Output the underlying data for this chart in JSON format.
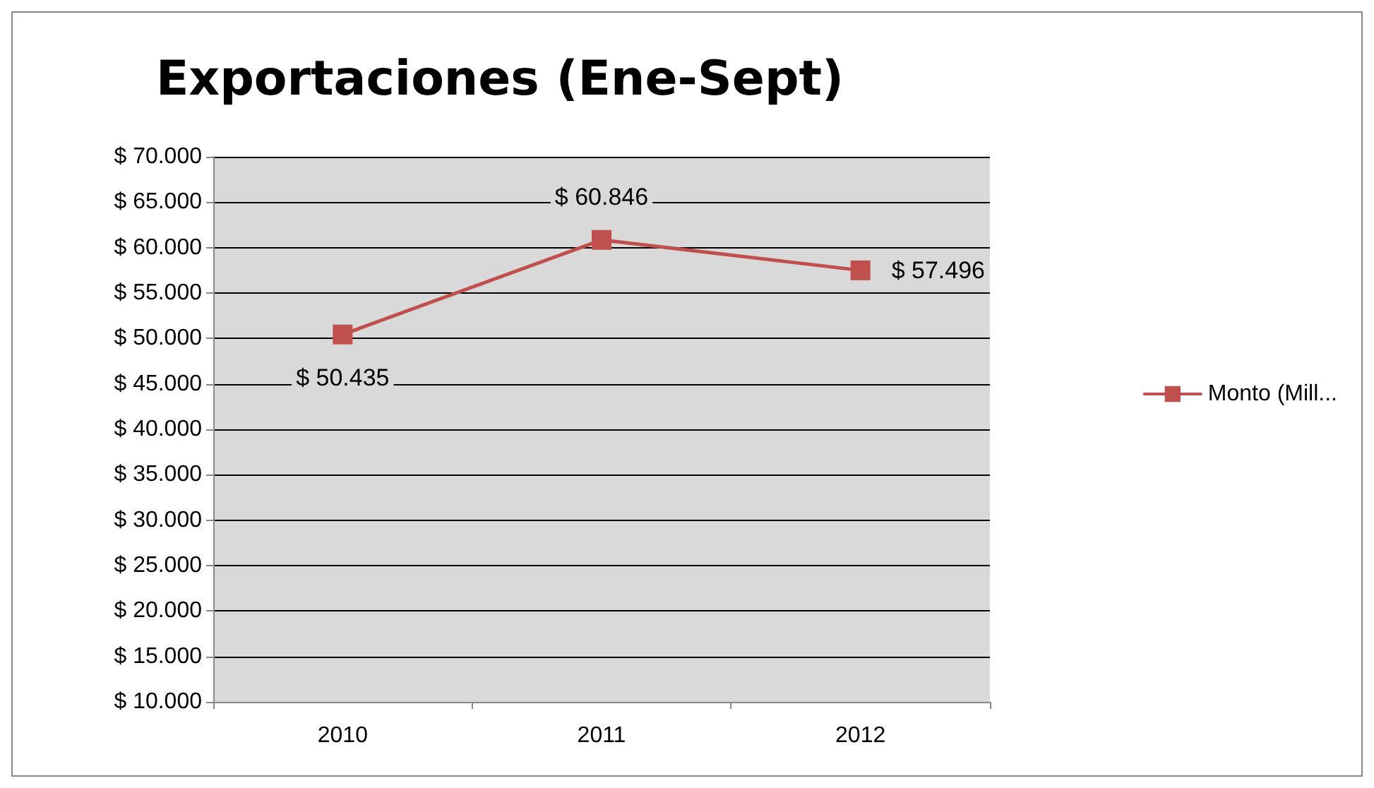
{
  "chart_data": {
    "type": "line",
    "title": "Exportaciones (Ene-Sept)",
    "categories": [
      "2010",
      "2011",
      "2012"
    ],
    "series": [
      {
        "name": "Monto (Mill...",
        "color": "#c0504d",
        "values": [
          50435,
          60846,
          57496
        ],
        "value_labels": [
          "$ 50.435",
          "$ 60.846",
          "$ 57.496"
        ]
      }
    ],
    "ylim": [
      10000,
      70000
    ],
    "yticks": [
      {
        "value": 10000,
        "label": "$ 10.000"
      },
      {
        "value": 15000,
        "label": "$ 15.000"
      },
      {
        "value": 20000,
        "label": "$ 20.000"
      },
      {
        "value": 25000,
        "label": "$ 25.000"
      },
      {
        "value": 30000,
        "label": "$ 30.000"
      },
      {
        "value": 35000,
        "label": "$ 35.000"
      },
      {
        "value": 40000,
        "label": "$ 40.000"
      },
      {
        "value": 45000,
        "label": "$ 45.000"
      },
      {
        "value": 50000,
        "label": "$ 50.000"
      },
      {
        "value": 55000,
        "label": "$ 55.000"
      },
      {
        "value": 60000,
        "label": "$ 60.000"
      },
      {
        "value": 65000,
        "label": "$ 65.000"
      },
      {
        "value": 70000,
        "label": "$ 70.000"
      }
    ],
    "grid": "y",
    "legend": "right",
    "marker": "square",
    "line_style": "solid"
  }
}
